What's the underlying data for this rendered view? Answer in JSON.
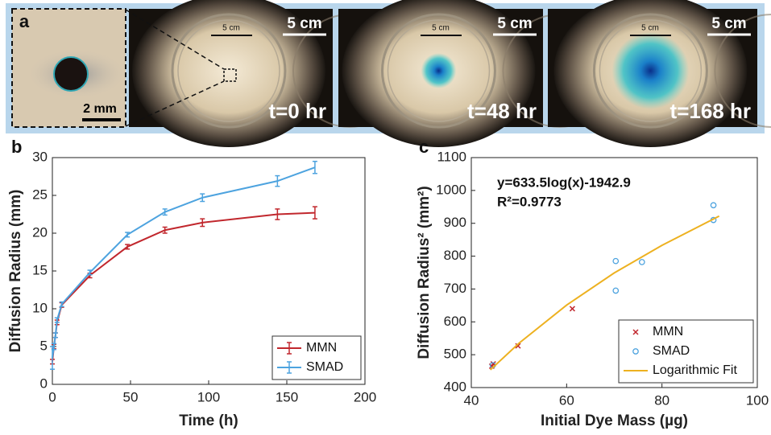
{
  "panel_a": {
    "label": "a",
    "inset_scale": "2 mm",
    "photos": [
      {
        "ruler": "5 cm",
        "scale": "5 cm",
        "time": "t=0 hr"
      },
      {
        "ruler": "5 cm",
        "scale": "5 cm",
        "time": "t=48 hr"
      },
      {
        "ruler": "5 cm",
        "scale": "5 cm",
        "time": "t=168 hr"
      }
    ]
  },
  "chart_data": [
    {
      "type": "line",
      "panel": "b",
      "xlabel": "Time (h)",
      "ylabel": "Diffusion Radius (mm)",
      "x": [
        0,
        1,
        2,
        3,
        6,
        24,
        48,
        72,
        96,
        144,
        168
      ],
      "series": [
        {
          "name": "MMN",
          "color": "#c1272d",
          "values": [
            3,
            5,
            6.5,
            8.2,
            10.5,
            14.4,
            18.2,
            20.4,
            21.4,
            22.5,
            22.7
          ],
          "errors": [
            0.3,
            0.3,
            0.3,
            0.3,
            0.3,
            0.3,
            0.3,
            0.4,
            0.5,
            0.7,
            0.8
          ]
        },
        {
          "name": "SMAD",
          "color": "#4da3df",
          "values": [
            3.5,
            5,
            6.5,
            8.5,
            10.6,
            14.8,
            19.8,
            22.8,
            24.7,
            26.9,
            28.7
          ],
          "errors": [
            1.5,
            0.4,
            0.3,
            0.3,
            0.3,
            0.3,
            0.3,
            0.4,
            0.5,
            0.7,
            0.8
          ]
        }
      ],
      "xlim": [
        0,
        200
      ],
      "xticks": [
        0,
        50,
        100,
        150,
        200
      ],
      "ylim": [
        0,
        30
      ],
      "yticks": [
        0,
        5,
        10,
        15,
        20,
        25,
        30
      ],
      "legend": "lower right"
    },
    {
      "type": "scatter",
      "panel": "c",
      "xlabel": "Initial Dye Mass (µg)",
      "ylabel": "Diffusion Radius² (mm²)",
      "annotations": [
        "y=633.5log(x)-1942.9",
        "R²=0.9773"
      ],
      "series": [
        {
          "name": "MMN",
          "color": "#c1272d",
          "marker": "x",
          "x": [
            44.3,
            44.6,
            49.8,
            61.2
          ],
          "values": [
            465,
            472,
            527,
            640
          ]
        },
        {
          "name": "SMAD",
          "color": "#4da3df",
          "marker": "o",
          "x": [
            44.5,
            70.3,
            70.3,
            75.8,
            90.8,
            90.8
          ],
          "values": [
            468,
            785,
            695,
            782,
            955,
            910
          ]
        },
        {
          "name": "Logarithmic Fit",
          "color": "#edb120",
          "marker": "line",
          "x": [
            44,
            50,
            60,
            70,
            80,
            92
          ],
          "values": [
            454,
            535,
            651,
            749,
            833,
            922
          ]
        }
      ],
      "xlim": [
        40,
        100
      ],
      "xticks": [
        40,
        60,
        80,
        100
      ],
      "ylim": [
        400,
        1100
      ],
      "yticks": [
        400,
        500,
        600,
        700,
        800,
        900,
        1000,
        1100
      ],
      "legend": "lower right"
    }
  ]
}
